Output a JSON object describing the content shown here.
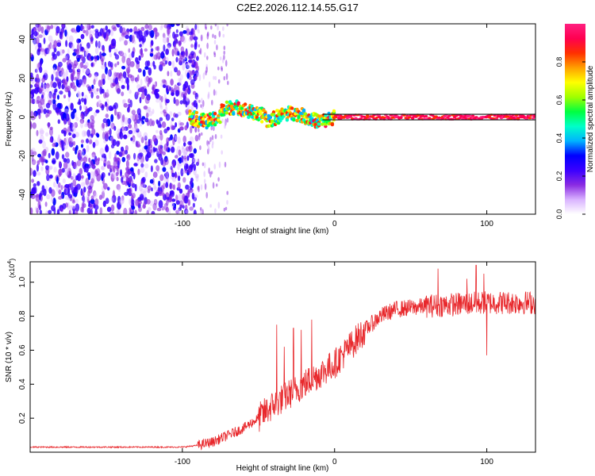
{
  "title": "C2E2.2026.112.14.55.G17",
  "colors": {
    "snr_line": "#e8272b",
    "ridge_line": "#111111",
    "axis": "#000000"
  },
  "chart_data": [
    {
      "type": "heatmap",
      "name": "spectrogram",
      "xlabel": "Height of straight line (km)",
      "ylabel": "Frequency (Hz)",
      "xlim": [
        -200,
        132
      ],
      "ylim": [
        -50,
        48
      ],
      "xticks": [
        -100,
        0,
        100
      ],
      "xtick_labels": [
        "-100",
        "0",
        "100"
      ],
      "yticks": [
        -40,
        -20,
        0,
        20,
        40
      ],
      "ytick_labels": [
        "-40",
        "-20",
        "0",
        "20",
        "40"
      ],
      "ridge_frequency_hz": 0,
      "noise_region_km": [
        -200,
        -90
      ],
      "ridge_start_km": -95,
      "colorbar": {
        "label": "Normalized spectral amplitude",
        "range": [
          0,
          1
        ],
        "ticks": [
          0.0,
          0.2,
          0.4,
          0.6,
          0.8
        ],
        "tick_labels": [
          "0.0",
          "0.2",
          "0.4",
          "0.6",
          "0.8"
        ],
        "colors": [
          "#ffffff",
          "#d9b3ff",
          "#8a2be2",
          "#3a00ff",
          "#0000ff",
          "#00b4ff",
          "#00ffc8",
          "#00ff40",
          "#a0ff00",
          "#ffff00",
          "#ffa000",
          "#ff3000",
          "#ff0050",
          "#ff2080"
        ]
      }
    },
    {
      "type": "line",
      "name": "snr",
      "xlabel": "Height of straight line (km)",
      "ylabel": "SNR (10 * v/v)",
      "y_multiplier_label": "(x10",
      "y_multiplier_exp": "4",
      "y_multiplier_close": ")",
      "xlim": [
        -200,
        132
      ],
      "ylim": [
        0,
        1.12
      ],
      "xticks": [
        -100,
        0,
        100
      ],
      "xtick_labels": [
        "-100",
        "0",
        "100"
      ],
      "yticks": [
        0.2,
        0.4,
        0.6,
        0.8,
        1.0
      ],
      "ytick_labels": [
        "0.2",
        "0.4",
        "0.6",
        "0.8",
        "1.0"
      ],
      "trend_x": [
        -200,
        -100,
        -90,
        -80,
        -70,
        -60,
        -50,
        -40,
        -30,
        -20,
        -10,
        0,
        10,
        20,
        30,
        40,
        60,
        80,
        100,
        132
      ],
      "trend_y": [
        0.03,
        0.03,
        0.04,
        0.06,
        0.1,
        0.14,
        0.2,
        0.28,
        0.34,
        0.4,
        0.46,
        0.52,
        0.62,
        0.72,
        0.8,
        0.84,
        0.86,
        0.87,
        0.88,
        0.88
      ],
      "spikes": [
        {
          "x": -38,
          "y": 0.75
        },
        {
          "x": -33,
          "y": 0.62
        },
        {
          "x": -27,
          "y": 0.73
        },
        {
          "x": -22,
          "y": 0.72
        },
        {
          "x": -15,
          "y": 0.78
        },
        {
          "x": 68,
          "y": 1.08
        },
        {
          "x": 87,
          "y": 1.02
        },
        {
          "x": 93,
          "y": 1.1
        },
        {
          "x": 98,
          "y": 1.05
        },
        {
          "x": 100,
          "y": 0.57
        }
      ]
    }
  ]
}
